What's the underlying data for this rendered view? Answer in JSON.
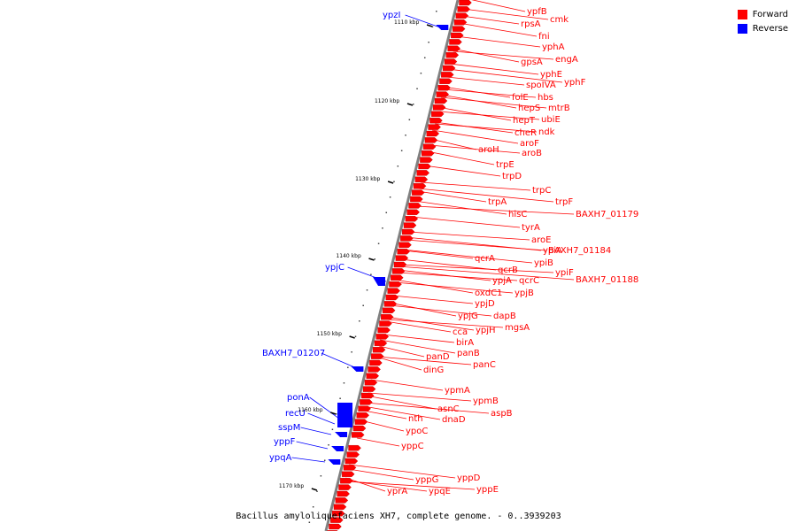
{
  "caption": "Bacillus amyloliquefaciens XH7, complete genome. - 0..3939203",
  "legend": [
    {
      "label": "Forward",
      "color": "#ff0000"
    },
    {
      "label": "Reverse",
      "color": "#0000ff"
    }
  ],
  "colors": {
    "forward": "#ff0000",
    "reverse": "#0000ff",
    "backbone": "#808080",
    "tick": "#000000"
  },
  "ticks": [
    {
      "label": "1110 kbp",
      "pos": 1110
    },
    {
      "label": "1120 kbp",
      "pos": 1120
    },
    {
      "label": "1130 kbp",
      "pos": 1130
    },
    {
      "label": "1140 kbp",
      "pos": 1140
    },
    {
      "label": "1150 kbp",
      "pos": 1150
    },
    {
      "label": "1160 kbp",
      "pos": 1160
    },
    {
      "label": "1170 kbp",
      "pos": 1170
    }
  ],
  "forward_genes": [
    "ypfB",
    "cmk",
    "rpsA",
    "fni",
    "yphA",
    "engA",
    "gpsA",
    "yphE",
    "spoIVA",
    "yphF",
    "folE",
    "hbs",
    "hepS",
    "mtrB",
    "ubiE",
    "hepT",
    "cheR",
    "ndk",
    "aroF",
    "aroH",
    "aroB",
    "trpE",
    "trpD",
    "trpC",
    "trpF",
    "trpA",
    "BAXH7_01179",
    "hisC",
    "tyrA",
    "aroE",
    "ypiA",
    "BAXH7_01184",
    "qcrA",
    "ypiB",
    "qcrB",
    "ypiF",
    "BAXH7_01188",
    "ypjA",
    "qcrC",
    "oxdC1",
    "ypjB",
    "ypjD",
    "ypjG",
    "dapB",
    "mgsA",
    "ypjH",
    "cca",
    "birA",
    "panB",
    "panD",
    "panC",
    "dinG",
    "ypmA",
    "ypmB",
    "asnC",
    "aspB",
    "nth",
    "dnaD",
    "ypoC",
    "yppC",
    "yppD",
    "yppG",
    "yppE",
    "yprA",
    "ypqE"
  ],
  "reverse_genes": [
    "ypzI",
    "ypjC",
    "BAXH7_01207",
    "ponA",
    "recU",
    "sspM",
    "yppF",
    "ypqA"
  ]
}
